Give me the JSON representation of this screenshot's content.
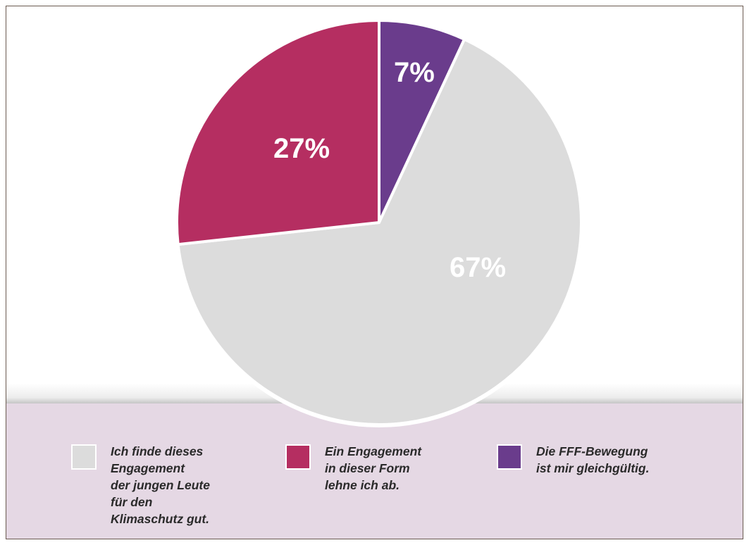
{
  "chart_data": {
    "type": "pie",
    "slices": [
      {
        "label": "Ich finde dieses\nEngagement\nder jungen Leute\nfür den\nKlimaschutz gut.",
        "value": 67,
        "value_label": "67%",
        "color": "#dcdcdc"
      },
      {
        "label": "Ein Engagement\nin dieser Form\nlehne ich ab.",
        "value": 27,
        "value_label": "27%",
        "color": "#b52e61"
      },
      {
        "label": "Die FFF-Bewegung\nist mir gleichgültig.",
        "value": 7,
        "value_label": "7%",
        "color": "#6a3c8c"
      }
    ],
    "start": "12 o'clock",
    "direction": "counter-clockwise from 12 o'clock: 7%, 27%, then 67%",
    "legend_position": "bottom"
  },
  "colors": {
    "legend_band": "#e5d8e4",
    "slice_border": "#ffffff"
  }
}
